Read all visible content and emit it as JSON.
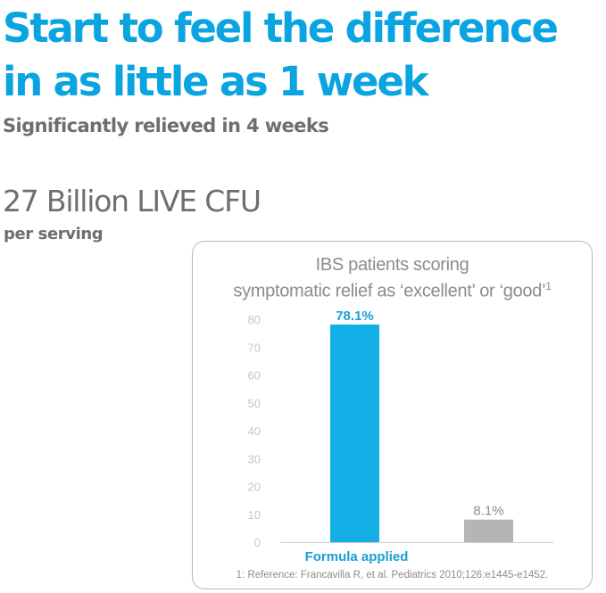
{
  "headline": {
    "line1": "Start to feel the difference",
    "line2": "in as little as 1 week"
  },
  "subheadline": "Significantly relieved in 4 weeks",
  "cfu": {
    "amount": "27 Billion LIVE CFU",
    "per": "per serving"
  },
  "chart_data": {
    "type": "bar",
    "title": "IBS patients scoring symptomatic relief as ‘excellent’ or ‘good’",
    "title_line1": "IBS patients scoring",
    "title_line2": "symptomatic relief as ‘excellent’ or ‘good’",
    "title_footnote": "1",
    "categories": [
      "Formula applied",
      ""
    ],
    "values": [
      78.1,
      8.1
    ],
    "data_labels": [
      "78.1%",
      "8.1%"
    ],
    "bar_colors": [
      "#14aee6",
      "#b5b5b5"
    ],
    "label_colors": [
      "#1a9fd4",
      "#8c8c8c"
    ],
    "yticks": [
      "0",
      "10",
      "20",
      "30",
      "40",
      "50",
      "60",
      "70",
      "80"
    ],
    "ylim": [
      0,
      80
    ],
    "grid": false
  },
  "reference": "1: Reference: Francavilla R, et al. Pediatrics 2010;126:e1445-e1452."
}
